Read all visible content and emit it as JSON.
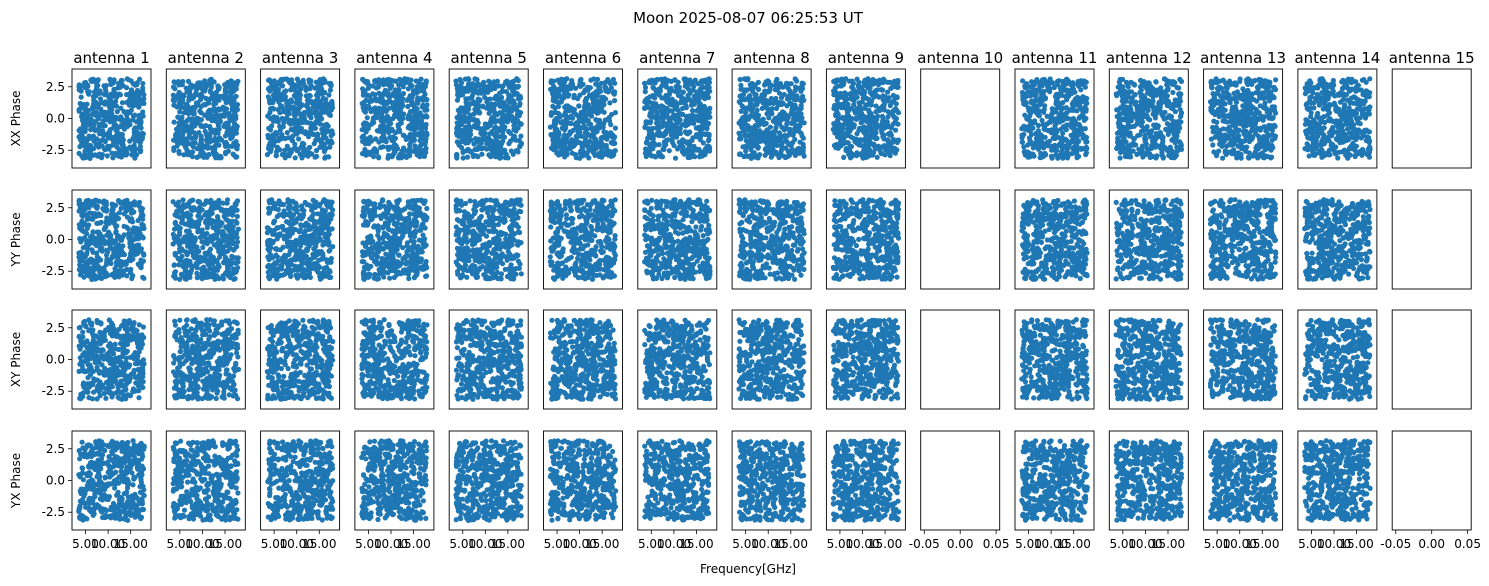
{
  "chart_data": {
    "type": "scatter",
    "title": "Moon 2025-08-07 06:25:53 UT",
    "xlabel": "Frequency[GHz]",
    "point_color": "#1f77b4",
    "antennas": [
      "antenna 1",
      "antenna 2",
      "antenna 3",
      "antenna 4",
      "antenna 5",
      "antenna 6",
      "antenna 7",
      "antenna 8",
      "antenna 9",
      "antenna 10",
      "antenna 11",
      "antenna 12",
      "antenna 13",
      "antenna 14",
      "antenna 15"
    ],
    "rows": [
      {
        "ylabel": "XX Phase"
      },
      {
        "ylabel": "YY Phase"
      },
      {
        "ylabel": "XY Phase"
      },
      {
        "ylabel": "YX Phase"
      }
    ],
    "ylim": [
      -3.9,
      3.9
    ],
    "yticks": [
      -2.5,
      0.0,
      2.5
    ],
    "ytick_labels": [
      "-2.5",
      "0.0",
      "2.5"
    ],
    "xlim_data": [
      2.0,
      19.5
    ],
    "xticks_data": [
      5.0,
      10.0,
      15.0
    ],
    "xtick_labels_data": [
      "5.00",
      "10.00",
      "15.00"
    ],
    "xlim_empty": [
      -0.055,
      0.055
    ],
    "xticks_empty": [
      -0.05,
      0.0,
      0.05
    ],
    "xtick_labels_empty": [
      "-0.05",
      "0.00",
      "0.05"
    ],
    "empty_antennas": [
      "antenna 10",
      "antenna 15"
    ],
    "freq_range_ghz": [
      3.5,
      18.0
    ],
    "phase_range_rad": [
      -3.14,
      3.14
    ],
    "points_per_panel": 450
  }
}
